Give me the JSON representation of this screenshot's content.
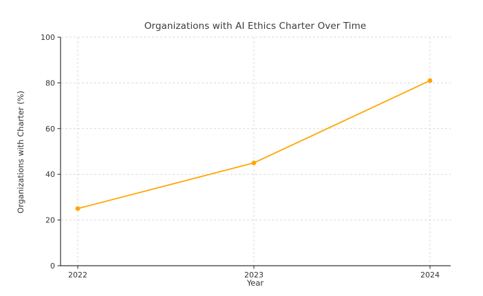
{
  "page": {
    "background": "#ffffff"
  },
  "chart_data": {
    "type": "line",
    "title": "Organizations with AI Ethics Charter Over Time",
    "xlabel": "Year",
    "ylabel": "Organizations with Charter (%)",
    "x": [
      2022,
      2023,
      2024
    ],
    "values": [
      25,
      45,
      81
    ],
    "ylim": [
      0,
      100
    ],
    "yticks": [
      0,
      20,
      40,
      60,
      80,
      100
    ],
    "xticks": [
      "2022",
      "2023",
      "2024"
    ],
    "grid": true,
    "grid_style": "dashed",
    "legend": "none",
    "line_color": "#FFA500",
    "marker": "circle",
    "grid_color": "#d9d9d9",
    "axis_color": "#333333",
    "text_color": "#333333",
    "background": "#ffffff"
  }
}
